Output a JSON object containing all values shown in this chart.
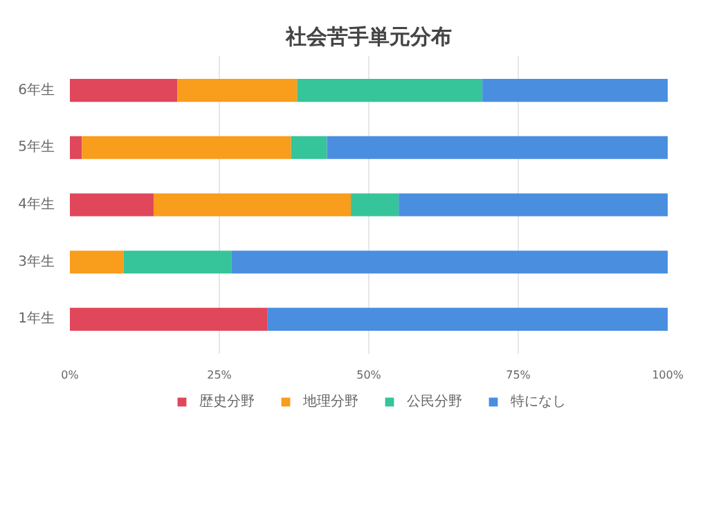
{
  "chart_data": {
    "type": "bar",
    "orientation": "horizontal",
    "stacked": true,
    "title": "社会苦手単元分布",
    "categories": [
      "6年生",
      "5年生",
      "4年生",
      "3年生",
      "1年生"
    ],
    "series": [
      {
        "name": "歴史分野",
        "color": "#e0475b",
        "values": [
          18,
          2,
          14,
          0,
          33
        ]
      },
      {
        "name": "地理分野",
        "color": "#f99d1c",
        "values": [
          20,
          35,
          33,
          9,
          0
        ]
      },
      {
        "name": "公民分野",
        "color": "#36c49a",
        "values": [
          31,
          6,
          8,
          18,
          0
        ]
      },
      {
        "name": "特になし",
        "color": "#4a8ee0",
        "values": [
          31,
          57,
          45,
          73,
          67
        ]
      }
    ],
    "xlim": [
      0,
      100
    ],
    "xticks": [
      {
        "value": 0,
        "label": "0%"
      },
      {
        "value": 25,
        "label": "25%"
      },
      {
        "value": 50,
        "label": "50%"
      },
      {
        "value": 75,
        "label": "75%"
      },
      {
        "value": 100,
        "label": "100%"
      }
    ],
    "grid": "x",
    "legend": "bottom"
  }
}
